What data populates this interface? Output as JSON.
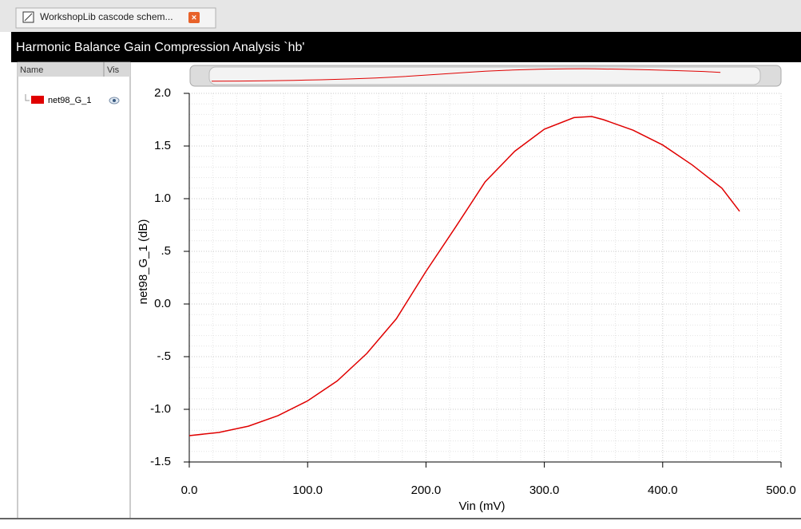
{
  "tab": {
    "title": "WorkshopLib cascode schem..."
  },
  "window": {
    "title": "Harmonic Balance Gain Compression Analysis `hb'"
  },
  "panel": {
    "columns": [
      "Name",
      "Vis"
    ]
  },
  "chart_data": {
    "type": "line",
    "x_label": "Vin (mV)",
    "y_label": "net98_G_1 (dB)",
    "x": [
      0,
      25,
      50,
      75,
      100,
      125,
      150,
      175,
      200,
      225,
      250,
      275,
      300,
      325,
      340,
      350,
      375,
      400,
      425,
      450,
      465
    ],
    "series": [
      {
        "name": "net98_G_1",
        "color": "#e00000",
        "values": [
          -1.25,
          -1.22,
          -1.16,
          -1.06,
          -0.92,
          -0.73,
          -0.47,
          -0.14,
          0.31,
          0.73,
          1.16,
          1.45,
          1.66,
          1.77,
          1.78,
          1.75,
          1.65,
          1.51,
          1.32,
          1.1,
          0.88
        ]
      }
    ],
    "xlim": [
      0,
      500
    ],
    "ylim": [
      -1.5,
      2.0
    ],
    "xticks": [
      {
        "value": 0,
        "label": "0.0"
      },
      {
        "value": 100,
        "label": "100.0"
      },
      {
        "value": 200,
        "label": "200.0"
      },
      {
        "value": 300,
        "label": "300.0"
      },
      {
        "value": 400,
        "label": "400.0"
      },
      {
        "value": 500,
        "label": "500.0"
      }
    ],
    "yticks": [
      {
        "value": -1.5,
        "label": "-1.5"
      },
      {
        "value": -1.0,
        "label": "-1.0"
      },
      {
        "value": -0.5,
        "label": "-.5"
      },
      {
        "value": 0,
        "label": "0.0"
      },
      {
        "value": 0.5,
        "label": ".5"
      },
      {
        "value": 1.0,
        "label": "1.0"
      },
      {
        "value": 1.5,
        "label": "1.5"
      },
      {
        "value": 2.0,
        "label": "2.0"
      }
    ],
    "grid": true
  }
}
